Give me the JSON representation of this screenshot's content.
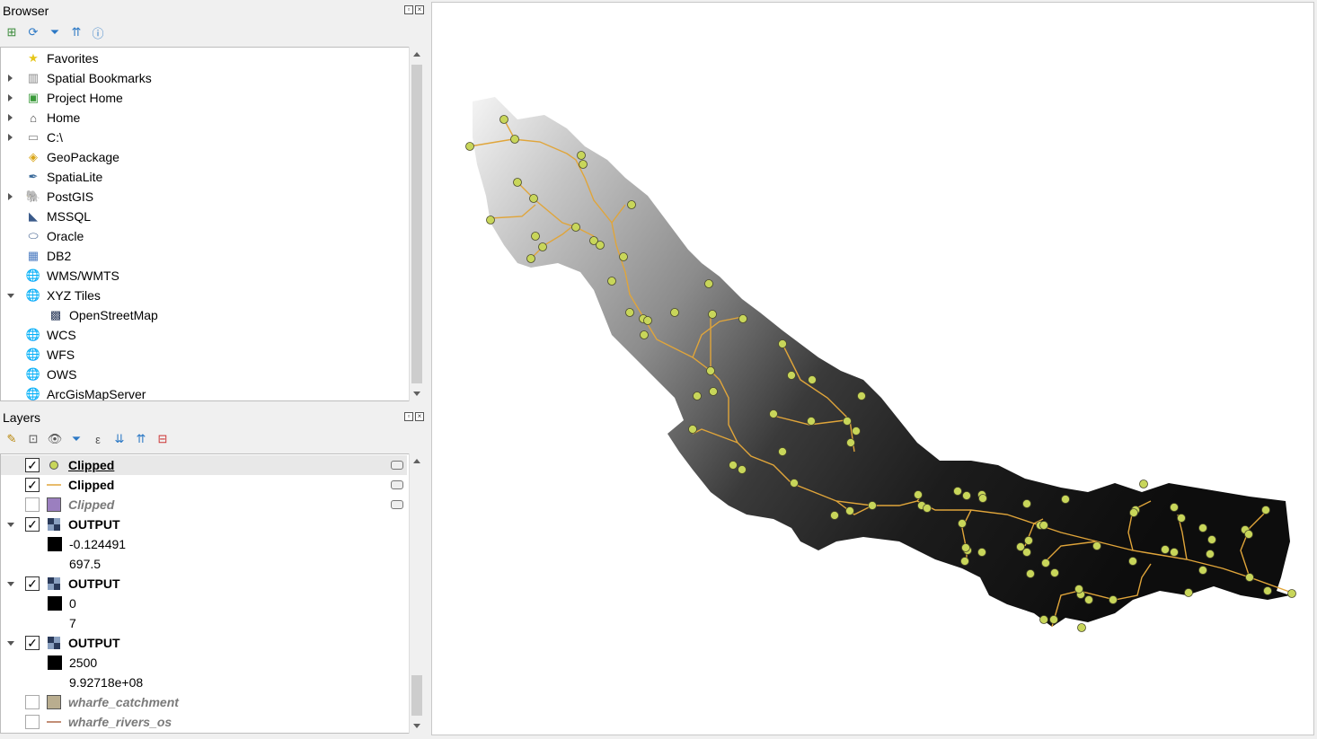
{
  "browser": {
    "title": "Browser",
    "items": [
      {
        "label": "Favorites",
        "icon": "star-icon",
        "expand": "none",
        "indent": 0
      },
      {
        "label": "Spatial Bookmarks",
        "icon": "bookmark-icon",
        "expand": "right",
        "indent": 0
      },
      {
        "label": "Project Home",
        "icon": "project-home-icon",
        "expand": "right",
        "indent": 0
      },
      {
        "label": "Home",
        "icon": "home-icon",
        "expand": "right",
        "indent": 0
      },
      {
        "label": "C:\\",
        "icon": "folder-icon",
        "expand": "right",
        "indent": 0
      },
      {
        "label": "GeoPackage",
        "icon": "geopackage-icon",
        "expand": "none",
        "indent": 0
      },
      {
        "label": "SpatiaLite",
        "icon": "spatialite-icon",
        "expand": "none",
        "indent": 0
      },
      {
        "label": "PostGIS",
        "icon": "postgis-icon",
        "expand": "right",
        "indent": 0
      },
      {
        "label": "MSSQL",
        "icon": "mssql-icon",
        "expand": "none",
        "indent": 0
      },
      {
        "label": "Oracle",
        "icon": "oracle-icon",
        "expand": "none",
        "indent": 0
      },
      {
        "label": "DB2",
        "icon": "db2-icon",
        "expand": "none",
        "indent": 0
      },
      {
        "label": "WMS/WMTS",
        "icon": "globe-icon",
        "expand": "none",
        "indent": 0
      },
      {
        "label": "XYZ Tiles",
        "icon": "globe-icon",
        "expand": "down",
        "indent": 0
      },
      {
        "label": "OpenStreetMap",
        "icon": "raster-tiles-icon",
        "expand": "none",
        "indent": 1
      },
      {
        "label": "WCS",
        "icon": "globe-icon",
        "expand": "none",
        "indent": 0
      },
      {
        "label": "WFS",
        "icon": "globe-icon",
        "expand": "none",
        "indent": 0
      },
      {
        "label": "OWS",
        "icon": "globe-icon",
        "expand": "none",
        "indent": 0
      },
      {
        "label": "ArcGisMapServer",
        "icon": "globe-icon",
        "expand": "none",
        "indent": 0
      }
    ]
  },
  "layers": {
    "title": "Layers",
    "items": [
      {
        "label": "Clipped",
        "kind": "point",
        "checked": true,
        "style": "bold-underline",
        "extra": true
      },
      {
        "label": "Clipped",
        "kind": "line",
        "checked": true,
        "style": "bold",
        "extra": true
      },
      {
        "label": "Clipped",
        "kind": "polygon",
        "checked": false,
        "style": "italic-gray",
        "extra": true
      },
      {
        "label": "OUTPUT",
        "kind": "raster",
        "checked": true,
        "style": "bold",
        "expand": "down"
      },
      {
        "label": "-0.124491",
        "kind": "legend-black"
      },
      {
        "label": "697.5",
        "kind": "legend-white"
      },
      {
        "label": "OUTPUT",
        "kind": "raster",
        "checked": true,
        "style": "bold",
        "expand": "down"
      },
      {
        "label": "0",
        "kind": "legend-black"
      },
      {
        "label": "7",
        "kind": "legend-white"
      },
      {
        "label": "OUTPUT",
        "kind": "raster",
        "checked": true,
        "style": "bold",
        "expand": "down"
      },
      {
        "label": "2500",
        "kind": "legend-black"
      },
      {
        "label": "9.92718e+08",
        "kind": "legend-white"
      },
      {
        "label": "wharfe_catchment",
        "kind": "polygon-tan",
        "checked": false,
        "style": "italic-gray"
      },
      {
        "label": "wharfe_rivers_os",
        "kind": "line-brown",
        "checked": false,
        "style": "italic-gray"
      }
    ]
  },
  "colors": {
    "point": "#c8d65a",
    "river": "#e0a53a",
    "polygon": "#9b7fbf",
    "catchment": "#b9ad8f",
    "rivers_os": "#a0522d"
  }
}
